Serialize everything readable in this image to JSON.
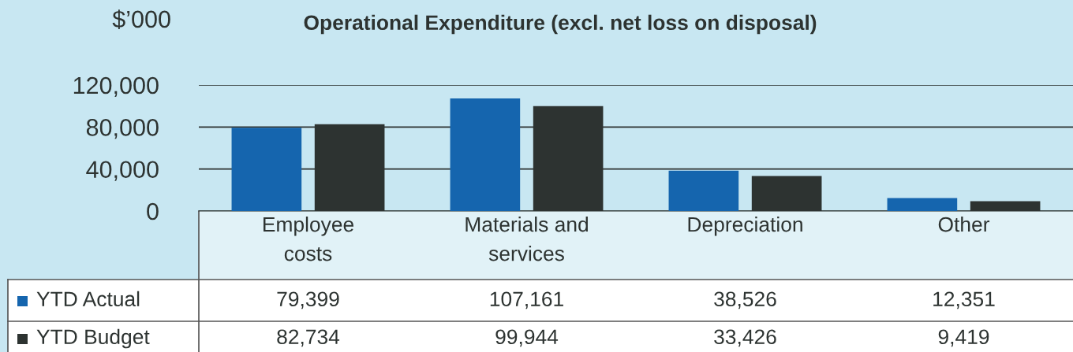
{
  "chart_data": {
    "type": "bar",
    "title": "Operational Expenditure (excl. net loss on disposal)",
    "ylabel": "$’000",
    "categories": [
      "Employee\ncosts",
      "Materials and\nservices",
      "Depreciation",
      "Other"
    ],
    "series": [
      {
        "name": "YTD Actual",
        "color": "#1565ae",
        "values": [
          79399,
          107161,
          38526,
          12351
        ],
        "value_labels": [
          "79,399",
          "107,161",
          "38,526",
          "12,351"
        ]
      },
      {
        "name": "YTD Budget",
        "color": "#2d3331",
        "values": [
          82734,
          99944,
          33426,
          9419
        ],
        "value_labels": [
          "82,734",
          "99,944",
          "33,426",
          "9,419"
        ]
      }
    ],
    "ylim": [
      0,
      120000
    ],
    "yticks": [
      {
        "value": 0,
        "label": "0"
      },
      {
        "value": 40000,
        "label": "40,000"
      },
      {
        "value": 80000,
        "label": "80,000"
      },
      {
        "value": 120000,
        "label": "120,000"
      }
    ],
    "grid": "y",
    "legend": "bottom left"
  }
}
